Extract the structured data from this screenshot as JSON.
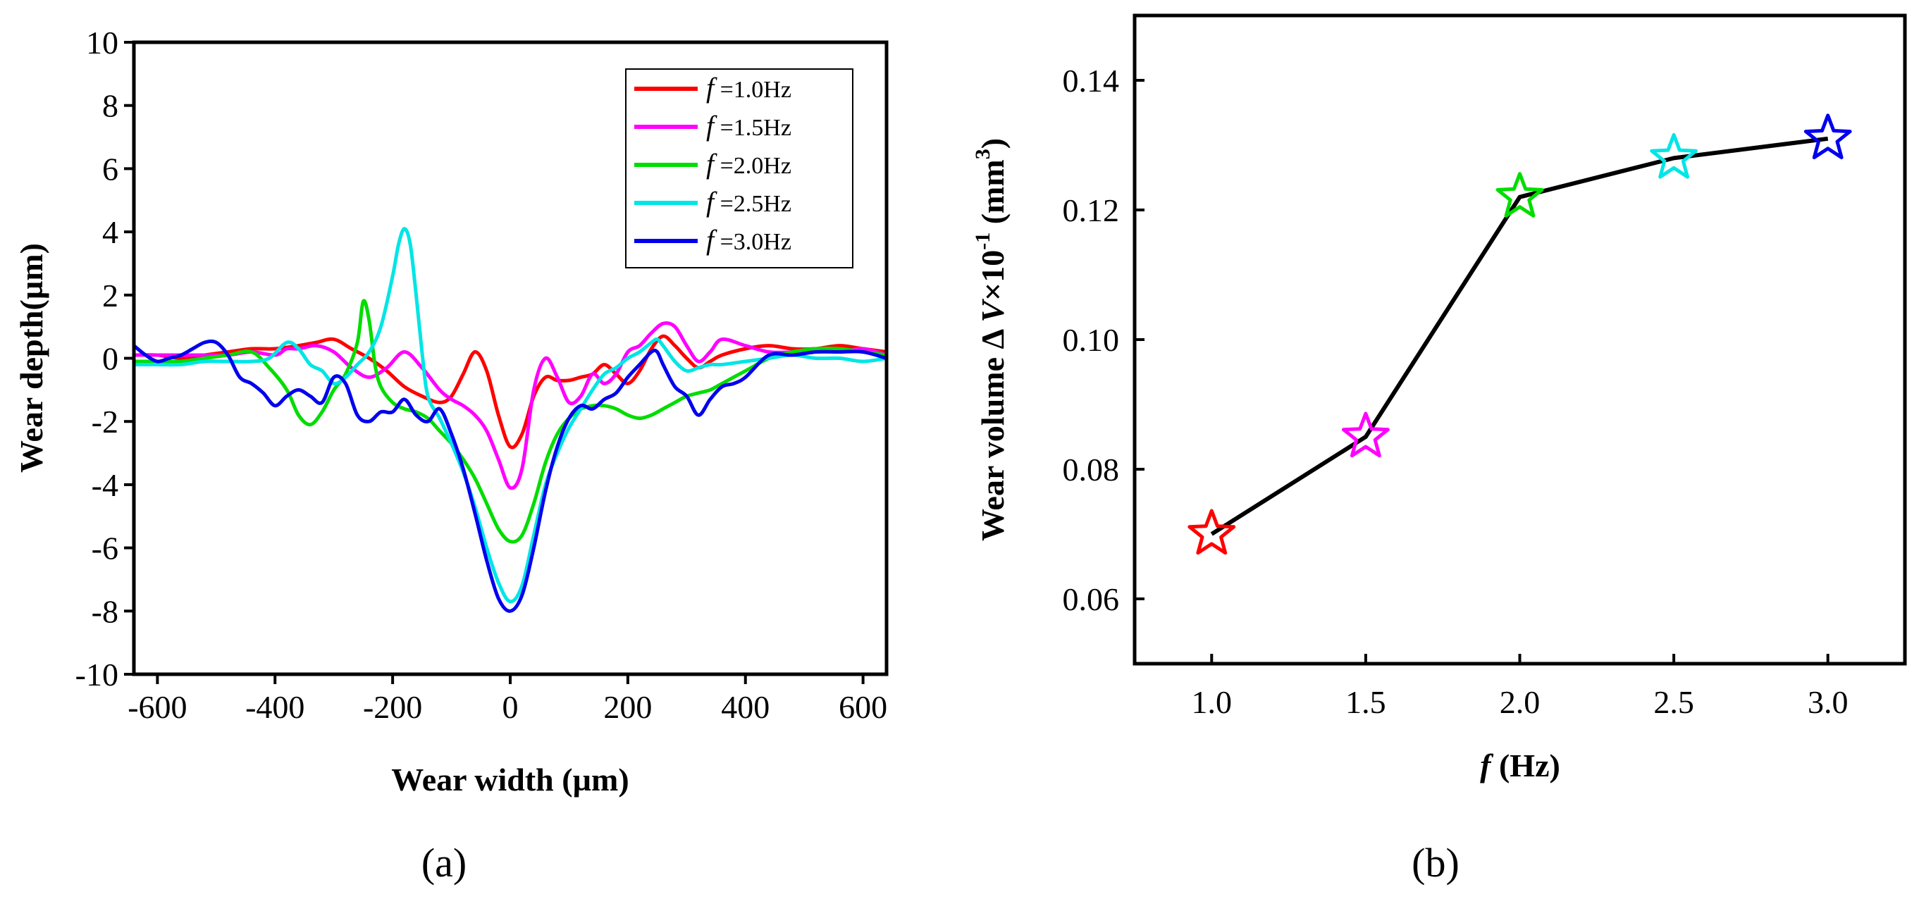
{
  "figure": {
    "panel_a_label": "(a)",
    "panel_b_label": "(b)"
  },
  "chart_data": [
    {
      "type": "line",
      "panel": "(a)",
      "xlabel": "Wear width (µm)",
      "ylabel": "Wear depth(µm)",
      "xlim": [
        -640,
        640
      ],
      "ylim": [
        -10,
        10
      ],
      "xticks": [
        -600,
        -400,
        -200,
        0,
        200,
        400,
        600
      ],
      "yticks": [
        -10,
        -8,
        -6,
        -4,
        -2,
        0,
        2,
        4,
        6,
        8,
        10
      ],
      "legend": "top-right",
      "series": [
        {
          "name": "f =1.0Hz",
          "prefix": "f",
          "suffix": " =1.0Hz",
          "color": "#ff0000",
          "x": [
            -640,
            -600,
            -560,
            -520,
            -480,
            -440,
            -400,
            -360,
            -330,
            -300,
            -270,
            -240,
            -210,
            -180,
            -150,
            -120,
            -100,
            -80,
            -60,
            -40,
            -20,
            0,
            20,
            40,
            60,
            80,
            100,
            120,
            140,
            160,
            180,
            200,
            220,
            240,
            260,
            280,
            300,
            320,
            340,
            360,
            400,
            440,
            480,
            520,
            560,
            600,
            640
          ],
          "y": [
            0.1,
            0.1,
            0.0,
            0.1,
            0.2,
            0.3,
            0.3,
            0.4,
            0.5,
            0.6,
            0.3,
            0.0,
            -0.4,
            -0.9,
            -1.2,
            -1.4,
            -1.2,
            -0.5,
            0.2,
            -0.4,
            -1.8,
            -2.8,
            -2.4,
            -1.2,
            -0.6,
            -0.7,
            -0.7,
            -0.6,
            -0.5,
            -0.2,
            -0.5,
            -0.8,
            -0.4,
            0.3,
            0.7,
            0.4,
            0.0,
            -0.3,
            -0.1,
            0.1,
            0.3,
            0.4,
            0.3,
            0.3,
            0.4,
            0.3,
            0.2
          ]
        },
        {
          "name": "f =1.5Hz",
          "prefix": "f",
          "suffix": " =1.5Hz",
          "color": "#ff00ff",
          "x": [
            -640,
            -600,
            -560,
            -520,
            -480,
            -440,
            -400,
            -380,
            -360,
            -330,
            -300,
            -270,
            -240,
            -210,
            -180,
            -150,
            -120,
            -100,
            -80,
            -60,
            -40,
            -20,
            0,
            20,
            40,
            60,
            80,
            100,
            120,
            140,
            160,
            180,
            200,
            220,
            240,
            260,
            280,
            300,
            320,
            340,
            360,
            400,
            440,
            480,
            520,
            560,
            600,
            640
          ],
          "y": [
            0.1,
            0.1,
            0.1,
            0.1,
            0.1,
            0.2,
            0.1,
            0.3,
            0.3,
            0.4,
            0.2,
            -0.3,
            -0.6,
            -0.3,
            0.2,
            -0.3,
            -1.0,
            -1.3,
            -1.5,
            -1.8,
            -2.3,
            -3.2,
            -4.1,
            -3.5,
            -1.0,
            0.0,
            -0.6,
            -1.4,
            -1.2,
            -0.5,
            -0.8,
            -0.5,
            0.2,
            0.4,
            0.8,
            1.1,
            1.0,
            0.4,
            -0.1,
            0.2,
            0.6,
            0.4,
            0.2,
            0.2,
            0.3,
            0.2,
            0.3,
            0.1
          ]
        },
        {
          "name": "f =2.0Hz",
          "prefix": "f",
          "suffix": " =2.0Hz",
          "color": "#00dd00",
          "x": [
            -640,
            -600,
            -560,
            -520,
            -480,
            -440,
            -410,
            -380,
            -360,
            -340,
            -320,
            -300,
            -280,
            -260,
            -250,
            -240,
            -230,
            -220,
            -200,
            -180,
            -160,
            -140,
            -120,
            -100,
            -80,
            -60,
            -40,
            -20,
            0,
            20,
            40,
            60,
            80,
            100,
            120,
            140,
            160,
            180,
            200,
            220,
            240,
            260,
            280,
            300,
            320,
            340,
            360,
            400,
            440,
            480,
            520,
            560,
            600,
            640
          ],
          "y": [
            -0.1,
            -0.1,
            -0.1,
            0.0,
            0.1,
            0.2,
            -0.3,
            -1.0,
            -1.8,
            -2.1,
            -1.7,
            -1.0,
            -0.5,
            0.5,
            1.8,
            1.2,
            -0.2,
            -0.9,
            -1.4,
            -1.6,
            -1.7,
            -1.9,
            -2.3,
            -2.7,
            -3.2,
            -3.8,
            -4.6,
            -5.4,
            -5.8,
            -5.6,
            -4.6,
            -3.3,
            -2.4,
            -1.9,
            -1.6,
            -1.5,
            -1.5,
            -1.6,
            -1.8,
            -1.9,
            -1.8,
            -1.6,
            -1.4,
            -1.2,
            -1.1,
            -1.0,
            -0.8,
            -0.4,
            0.0,
            0.2,
            0.3,
            0.3,
            0.2,
            0.1
          ]
        },
        {
          "name": "f =2.5Hz",
          "prefix": "f",
          "suffix": " =2.5Hz",
          "color": "#00e5e5",
          "x": [
            -640,
            -600,
            -560,
            -520,
            -480,
            -440,
            -410,
            -380,
            -360,
            -340,
            -320,
            -300,
            -280,
            -260,
            -240,
            -220,
            -200,
            -190,
            -180,
            -170,
            -160,
            -150,
            -140,
            -120,
            -100,
            -80,
            -60,
            -40,
            -20,
            0,
            20,
            40,
            60,
            80,
            100,
            120,
            140,
            160,
            180,
            200,
            220,
            240,
            250,
            260,
            280,
            300,
            320,
            340,
            360,
            400,
            440,
            480,
            520,
            560,
            600,
            640
          ],
          "y": [
            -0.2,
            -0.2,
            -0.2,
            -0.1,
            -0.1,
            -0.1,
            0.0,
            0.5,
            0.3,
            -0.2,
            -0.4,
            -0.8,
            -0.6,
            -0.2,
            0.2,
            1.0,
            2.6,
            3.6,
            4.1,
            3.6,
            2.0,
            0.2,
            -1.2,
            -1.9,
            -2.7,
            -3.6,
            -4.7,
            -6.0,
            -7.1,
            -7.7,
            -7.2,
            -5.6,
            -4.0,
            -3.0,
            -2.2,
            -1.6,
            -1.0,
            -0.5,
            -0.3,
            0.0,
            0.2,
            0.5,
            0.6,
            0.4,
            -0.1,
            -0.4,
            -0.3,
            -0.2,
            -0.2,
            -0.1,
            0.0,
            0.1,
            0.0,
            0.0,
            -0.1,
            0.0
          ]
        },
        {
          "name": "f =3.0Hz",
          "prefix": "f",
          "suffix": " =3.0Hz",
          "color": "#0000ee",
          "x": [
            -640,
            -620,
            -600,
            -580,
            -560,
            -540,
            -520,
            -500,
            -480,
            -460,
            -440,
            -420,
            -400,
            -380,
            -360,
            -340,
            -320,
            -300,
            -280,
            -260,
            -240,
            -220,
            -200,
            -180,
            -160,
            -140,
            -120,
            -100,
            -80,
            -60,
            -40,
            -20,
            0,
            20,
            40,
            60,
            80,
            100,
            120,
            140,
            160,
            180,
            200,
            220,
            240,
            250,
            260,
            280,
            300,
            320,
            340,
            360,
            380,
            400,
            440,
            480,
            520,
            560,
            600,
            640
          ],
          "y": [
            0.4,
            0.1,
            -0.1,
            0.0,
            0.1,
            0.3,
            0.5,
            0.5,
            0.1,
            -0.6,
            -0.8,
            -1.1,
            -1.5,
            -1.2,
            -1.0,
            -1.2,
            -1.4,
            -0.6,
            -0.8,
            -1.8,
            -2.0,
            -1.7,
            -1.7,
            -1.3,
            -1.8,
            -2.0,
            -1.6,
            -2.4,
            -3.5,
            -4.9,
            -6.4,
            -7.6,
            -8.0,
            -7.5,
            -6.0,
            -4.2,
            -2.8,
            -1.9,
            -1.5,
            -1.6,
            -1.3,
            -1.1,
            -0.6,
            -0.2,
            0.2,
            0.2,
            -0.2,
            -0.9,
            -1.2,
            -1.8,
            -1.3,
            -0.9,
            -0.8,
            -0.6,
            0.1,
            0.1,
            0.2,
            0.2,
            0.2,
            0.0
          ]
        }
      ]
    },
    {
      "type": "line",
      "panel": "(b)",
      "xlabel_italic": "f",
      "xlabel_rest": " (Hz)",
      "ylabel_prefix": "Wear volume Δ ",
      "ylabel_v": "V",
      "ylabel_mid": "×10",
      "ylabel_exp": "-1",
      "ylabel_unit": " (mm",
      "ylabel_unit_exp": "3",
      "ylabel_close": ")",
      "xlim": [
        0.75,
        3.25
      ],
      "ylim": [
        0.05,
        0.15
      ],
      "xticks": [
        1.0,
        1.5,
        2.0,
        2.5,
        3.0
      ],
      "xtick_labels": [
        "1.0",
        "1.5",
        "2.0",
        "2.5",
        "3.0"
      ],
      "yticks": [
        0.06,
        0.08,
        0.1,
        0.12,
        0.14
      ],
      "ytick_labels": [
        "0.06",
        "0.08",
        "0.10",
        "0.12",
        "0.14"
      ],
      "marker": "star",
      "line_color": "#000000",
      "points": [
        {
          "x": 1.0,
          "y": 0.07,
          "color": "#ff0000"
        },
        {
          "x": 1.5,
          "y": 0.085,
          "color": "#ff00ff"
        },
        {
          "x": 2.0,
          "y": 0.122,
          "color": "#00dd00"
        },
        {
          "x": 2.5,
          "y": 0.128,
          "color": "#00e5e5"
        },
        {
          "x": 3.0,
          "y": 0.131,
          "color": "#0000ee"
        }
      ]
    }
  ]
}
